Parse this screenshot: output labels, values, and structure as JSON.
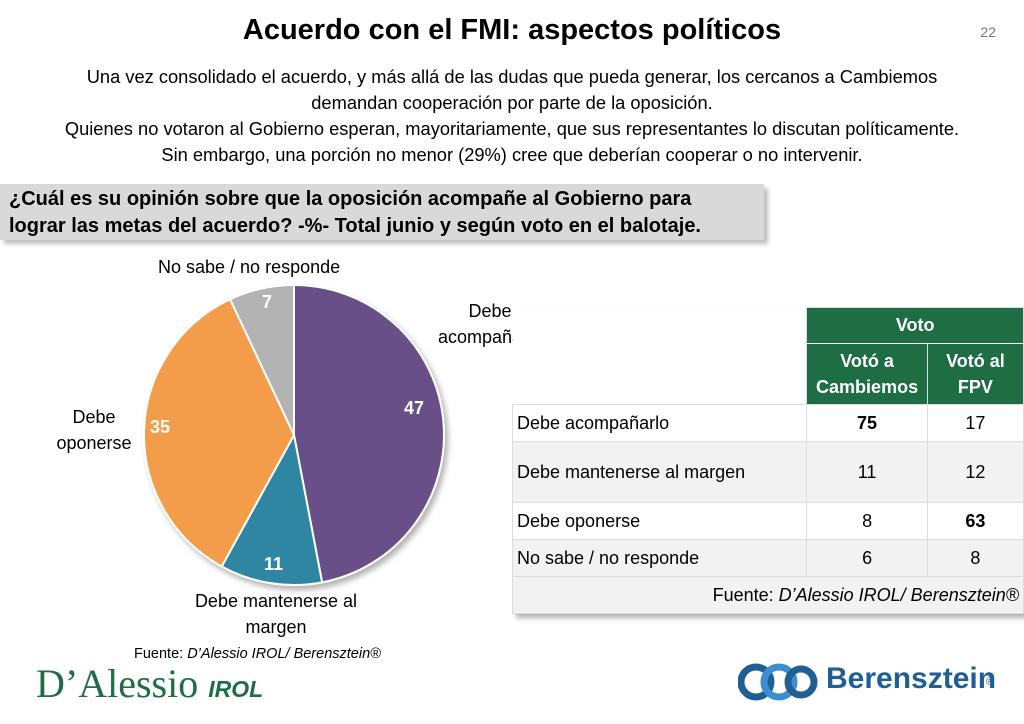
{
  "page": {
    "title": "Acuerdo con el FMI: aspectos políticos",
    "number": "22",
    "intro_lines": [
      "Una vez consolidado el acuerdo, y más allá de las dudas que pueda generar, los cercanos a Cambiemos",
      "demandan cooperación por parte de la oposición.",
      "Quienes no votaron al Gobierno esperan, mayoritariamente, que sus representantes lo discutan políticamente.",
      "Sin embargo, una porción no menor (29%) cree que deberían cooperar o no intervenir."
    ],
    "question_line1": "¿Cuál es su opinión sobre que la oposición acompañe al Gobierno para",
    "question_line2": "lograr las metas del acuerdo? -%- Total junio y según voto en el balotaje."
  },
  "chart_data": [
    {
      "type": "pie",
      "categories": [
        "Debe acompañarlo",
        "Debe mantenerse al margen",
        "Debe oponerse",
        "No sabe / no responde"
      ],
      "values": [
        47,
        11,
        35,
        7
      ],
      "colors": [
        "#674f88",
        "#2e86a3",
        "#f39c4a",
        "#b3b3b3"
      ],
      "start": "12 o'clock, clockwise",
      "labels": {
        "acompanar_1": "Debe",
        "acompanar_2": "acompañarlo",
        "margen_1": "Debe mantenerse al",
        "margen_2": "margen",
        "oponer_1": "Debe",
        "oponer_2": "oponerse",
        "nsnr": "No sabe / no responde"
      },
      "data_labels": [
        "47",
        "11",
        "35",
        "7"
      ]
    },
    {
      "type": "table",
      "group_header": "Voto",
      "columns": [
        "Votó a Cambiemos",
        "Votó al FPV"
      ],
      "column_lines": [
        [
          "Votó a",
          "Cambiemos"
        ],
        [
          "Votó al",
          "FPV"
        ]
      ],
      "rows": [
        {
          "label": "Debe acompañarlo",
          "values": [
            "75",
            "17"
          ],
          "bold": [
            true,
            false
          ]
        },
        {
          "label": "Debe mantenerse al margen",
          "values": [
            "11",
            "12"
          ],
          "bold": [
            false,
            false
          ]
        },
        {
          "label": "Debe oponerse",
          "values": [
            "8",
            "63"
          ],
          "bold": [
            false,
            true
          ]
        },
        {
          "label": "No sabe / no responde",
          "values": [
            "6",
            "8"
          ],
          "bold": [
            false,
            false
          ]
        }
      ],
      "source_prefix": "Fuente: ",
      "source_italic": "D’Alessio IROL/ Berensztein®",
      "header_color": "#1f6d45"
    }
  ],
  "source_left": {
    "prefix": "Fuente: ",
    "italic": "D’Alessio IROL/ Berensztein®"
  },
  "logos": {
    "left_main": "D’Alessio",
    "left_suffix": "IROL",
    "right_word": "Berensztein",
    "right_reg": "®"
  }
}
